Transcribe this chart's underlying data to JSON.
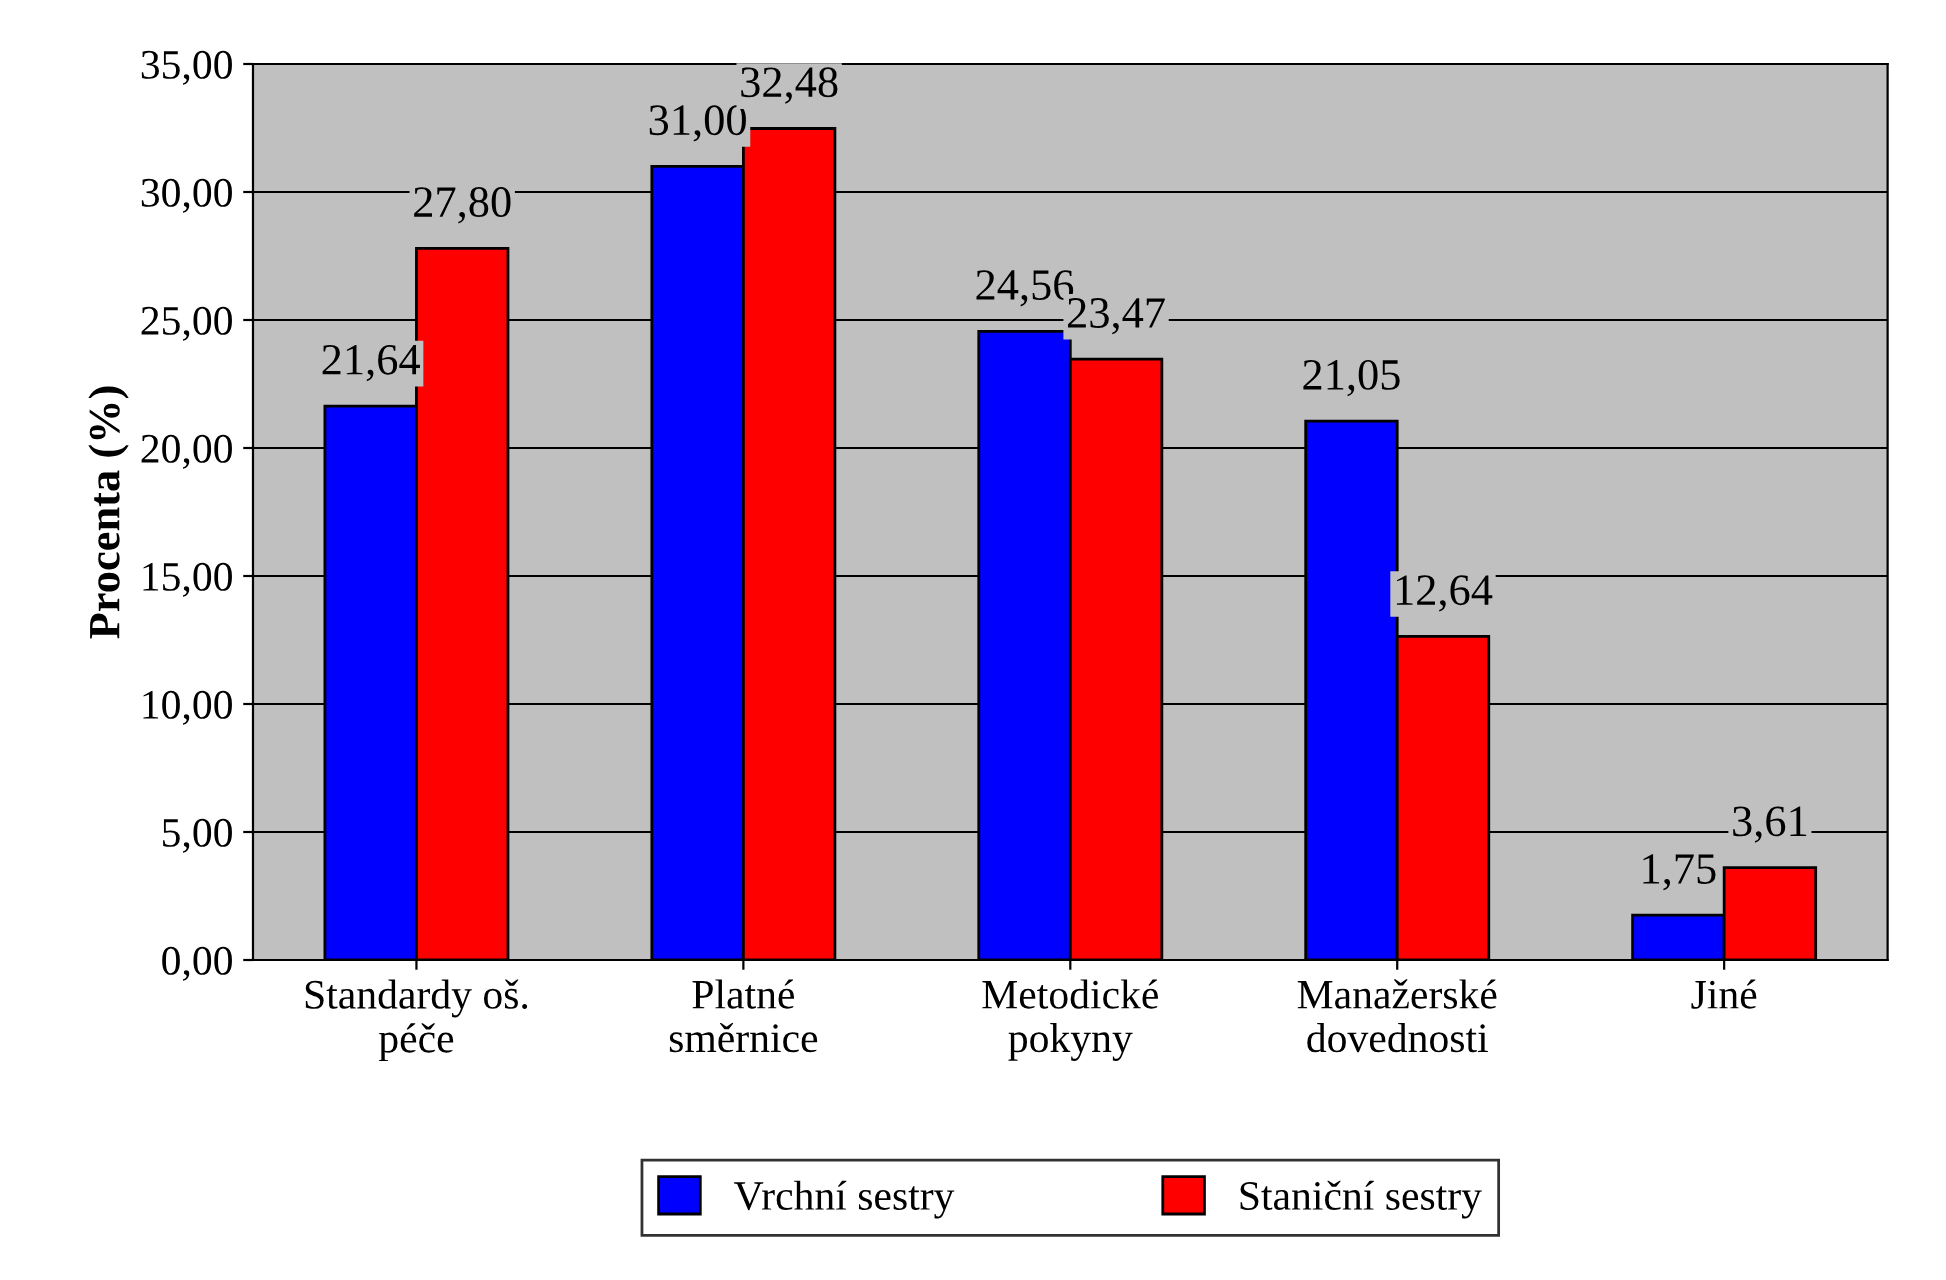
{
  "chart_data": {
    "type": "bar",
    "ylabel": "Procenta (%)",
    "categories": [
      "Standardy oš.\npéče",
      "Platné\nsměrnice",
      "Metodické\npokyny",
      "Manažerské\ndovednosti",
      "Jiné"
    ],
    "series": [
      {
        "name": "Vrchní sestry",
        "color": "#0000ff",
        "values": [
          21.64,
          31.0,
          24.56,
          21.05,
          1.75
        ],
        "value_labels": [
          "21,64",
          "31,00",
          "24,56",
          "21,05",
          "1,75"
        ]
      },
      {
        "name": "Staniční sestry",
        "color": "#ff0000",
        "values": [
          27.8,
          32.48,
          23.47,
          12.64,
          3.61
        ],
        "value_labels": [
          "27,80",
          "32,48",
          "23,47",
          "12,64",
          "3,61"
        ]
      }
    ],
    "ylim": [
      0,
      35
    ],
    "yticks": [
      {
        "value": 0,
        "label": "0,00"
      },
      {
        "value": 5,
        "label": "5,00"
      },
      {
        "value": 10,
        "label": "10,00"
      },
      {
        "value": 15,
        "label": "15,00"
      },
      {
        "value": 20,
        "label": "20,00"
      },
      {
        "value": 25,
        "label": "25,00"
      },
      {
        "value": 30,
        "label": "30,00"
      },
      {
        "value": 35,
        "label": "35,00"
      }
    ],
    "grid": "y",
    "legend": "bottom"
  }
}
